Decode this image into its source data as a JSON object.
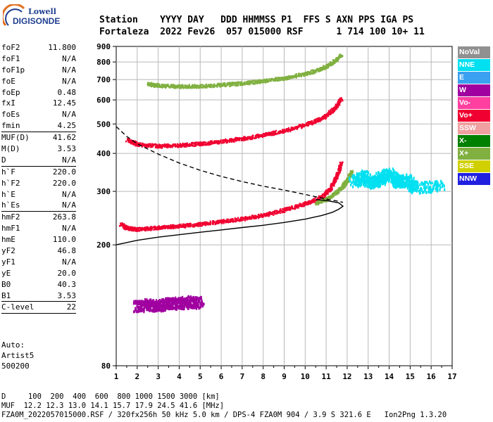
{
  "logo": {
    "line1": "Lowell",
    "line2": "DIGISONDE"
  },
  "header": {
    "labels": "Station    YYYY DAY   DDD HHMMSS P1  FFS S AXN PPS IGA PS",
    "values": "Fortaleza  2022 Fev26  057 015000 RSF      1 714 100 10+ 11"
  },
  "params": [
    {
      "label": "foF2",
      "value": "11.800"
    },
    {
      "label": "foF1",
      "value": "N/A"
    },
    {
      "label": "foF1p",
      "value": "N/A"
    },
    {
      "label": "foE",
      "value": "N/A"
    },
    {
      "label": "foEp",
      "value": "0.48"
    },
    {
      "label": "fxI",
      "value": "12.45"
    },
    {
      "label": "foEs",
      "value": "N/A"
    },
    {
      "label": "fmin",
      "value": "4.25"
    },
    {
      "sep": true
    },
    {
      "label": "MUF(D)",
      "value": "41.62"
    },
    {
      "label": "M(D)",
      "value": "3.53"
    },
    {
      "label": "D",
      "value": "N/A"
    },
    {
      "sep": true
    },
    {
      "label": "h`F",
      "value": "220.0"
    },
    {
      "label": "h`F2",
      "value": "220.0"
    },
    {
      "label": "h`E",
      "value": "N/A"
    },
    {
      "label": "h`Es",
      "value": "N/A"
    },
    {
      "sep": true
    },
    {
      "label": "hmF2",
      "value": "263.8"
    },
    {
      "label": "hmF1",
      "value": "N/A"
    },
    {
      "label": "hmE",
      "value": "110.0"
    },
    {
      "label": "yF2",
      "value": "46.8"
    },
    {
      "label": "yF1",
      "value": "N/A"
    },
    {
      "label": "yE",
      "value": "20.0"
    },
    {
      "label": "B0",
      "value": "40.3"
    },
    {
      "label": "B1",
      "value": "3.53"
    },
    {
      "sep": true
    },
    {
      "label": "C-level",
      "value": "22"
    },
    {
      "sep": true
    }
  ],
  "auto": {
    "line1": "Auto:",
    "line2": "Artist5",
    "line3": "500200"
  },
  "legend": [
    {
      "label": "NoVal",
      "color": "#909090"
    },
    {
      "label": "NNE",
      "color": "#00e0f0"
    },
    {
      "label": "E",
      "color": "#3aa0f0"
    },
    {
      "label": "W",
      "color": "#a000a0"
    },
    {
      "label": "Vo-",
      "color": "#ff40a0"
    },
    {
      "label": "Vo+",
      "color": "#f00030"
    },
    {
      "label": "SSW",
      "color": "#f0a0a0"
    },
    {
      "label": "X-",
      "color": "#008000"
    },
    {
      "label": "X+",
      "color": "#80b040"
    },
    {
      "label": "SSE",
      "color": "#d0d000"
    },
    {
      "label": "NNW",
      "color": "#2020e0"
    }
  ],
  "footer": {
    "line1": "D     100  200  400  600  800 1000 1500 3000 [km]",
    "line2": "MUF  12.2 12.3 13.0 14.1 15.7 17.9 24.5 41.6 [MHz]",
    "line3": "FZA0M_2022057015000.RSF / 320fx256h 50 kHz 5.0 km / DPS-4 FZA0M 904 / 3.9 S 321.6 E   Ion2Png 1.3.20"
  },
  "chart_data": {
    "type": "scatter",
    "title": "",
    "xlabel": "",
    "ylabel": "",
    "xlim": [
      1,
      17
    ],
    "x_ticks": [
      1,
      2,
      3,
      4,
      5,
      6,
      7,
      8,
      9,
      10,
      11,
      12,
      13,
      14,
      15,
      16,
      17
    ],
    "y_scale": "log",
    "ylim": [
      80,
      900
    ],
    "y_ticks": [
      80,
      200,
      300,
      400,
      500,
      600,
      700,
      800,
      900
    ],
    "grid": true,
    "traces": [
      {
        "name": "O-trace F2",
        "color": "#f00030",
        "x": [
          1.2,
          1.5,
          2.0,
          3.0,
          4.0,
          5.0,
          6.0,
          7.0,
          8.0,
          9.0,
          10.0,
          10.8,
          11.2,
          11.5,
          11.7
        ],
        "y": [
          235,
          228,
          226,
          229,
          232,
          235,
          240,
          245,
          252,
          262,
          275,
          290,
          310,
          340,
          375
        ]
      },
      {
        "name": "X-trace F2",
        "color": "#80b040",
        "x": [
          10.5,
          11.0,
          11.5,
          11.8,
          12.0,
          12.2
        ],
        "y": [
          275,
          285,
          300,
          315,
          330,
          350
        ]
      },
      {
        "name": "2nd hop F2",
        "color": "#f00030",
        "x": [
          1.5,
          2.0,
          3.0,
          4.0,
          5.0,
          6.0,
          7.0,
          8.0,
          9.0,
          10.0,
          10.8,
          11.4,
          11.7
        ],
        "y": [
          445,
          430,
          425,
          428,
          433,
          440,
          450,
          462,
          478,
          500,
          525,
          565,
          610
        ]
      },
      {
        "name": "3rd hop F2",
        "color": "#80b040",
        "x": [
          2.5,
          3.0,
          4.0,
          5.0,
          6.0,
          7.0,
          8.0,
          9.0,
          10.0,
          10.8,
          11.3,
          11.7
        ],
        "y": [
          680,
          672,
          668,
          670,
          676,
          684,
          696,
          712,
          735,
          765,
          800,
          850
        ]
      },
      {
        "name": "NNE spread",
        "color": "#00e0f0",
        "x": [
          12.3,
          12.8,
          13.2,
          13.6,
          14.0,
          14.4,
          14.8,
          15.2,
          16.5
        ],
        "y": [
          325,
          340,
          320,
          335,
          345,
          325,
          330,
          310,
          315
        ]
      },
      {
        "name": "W low echoes",
        "color": "#a000a0",
        "x": [
          2.0,
          2.5,
          3.0,
          3.5,
          4.0,
          4.5,
          5.0
        ],
        "y": [
          126,
          128,
          127,
          130,
          129,
          131,
          130
        ]
      }
    ],
    "profile": {
      "name": "electron density profile",
      "color": "#000000",
      "x": [
        1.0,
        2.0,
        3.0,
        4.0,
        5.0,
        6.0,
        7.0,
        8.0,
        9.0,
        10.0,
        10.8,
        11.3,
        11.6,
        11.8,
        11.6,
        11.0,
        10.5
      ],
      "y": [
        200,
        207,
        212,
        216,
        220,
        224,
        228,
        232,
        237,
        243,
        250,
        256,
        262,
        268,
        275,
        280,
        282
      ]
    },
    "muf_curve": {
      "name": "MUF distance curve",
      "color": "#000000",
      "x": [
        1.0,
        1.5,
        2.0,
        3.0,
        4.0,
        5.0,
        6.0,
        7.0,
        8.0,
        9.0,
        10.0,
        10.5,
        11.0,
        11.5,
        11.8
      ],
      "y": [
        490,
        455,
        430,
        398,
        372,
        352,
        336,
        323,
        312,
        303,
        293,
        288,
        283,
        279,
        276
      ]
    }
  }
}
